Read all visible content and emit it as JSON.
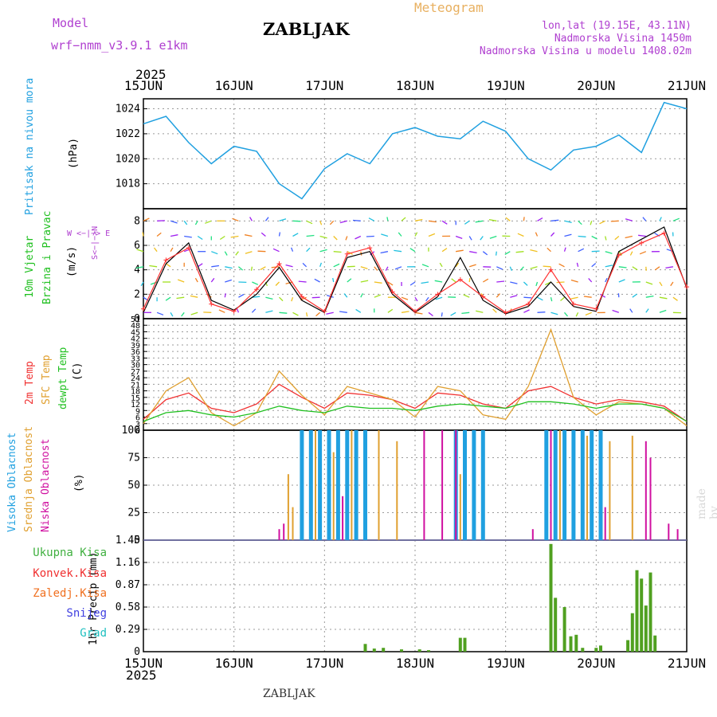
{
  "header": {
    "model_label": "Model",
    "model_value": "wrf−nmm_v3.9.1  e1km",
    "station": "ZABLJAK",
    "title": "Meteogram",
    "lonlat": "lon,lat (19.15E, 43.11N)",
    "elevation": "Nadmorska Visina 1450m",
    "model_elevation": "Nadmorska Visina u modelu 1408.02m",
    "year_top": "2025",
    "year_bottom": "2025",
    "footer_station": "ZABLJAK",
    "watermark": "made by Angel"
  },
  "colors": {
    "pressure": "#20a0e0",
    "wind_speed": "#000000",
    "gust": "#ff3030",
    "t2m": "#f03030",
    "sfc": "#e0a030",
    "dewpt": "#20c020",
    "high_cloud": "#20a0e0",
    "mid_cloud": "#e0a030",
    "low_cloud": "#d010a0",
    "total_precip": "#50a020",
    "convective": "#f03030",
    "frozen": "#f07020",
    "snow": "#4040e0",
    "graupel": "#20c0c0",
    "label_magenta": "#b040d0"
  },
  "chart_data": [
    {
      "type": "line",
      "panel": "pressure",
      "ylabel_main": "Pritisak na nivou mora",
      "ylabel_unit": "(hPa)",
      "x_ticks": [
        "15JUN",
        "16JUN",
        "17JUN",
        "18JUN",
        "19JUN",
        "20JUN",
        "21JUN"
      ],
      "ylim": [
        1016,
        1024.8
      ],
      "y_ticks": [
        1018,
        1020,
        1022,
        1024
      ],
      "x": [
        0,
        0.25,
        0.5,
        0.75,
        1,
        1.25,
        1.5,
        1.75,
        2,
        2.25,
        2.5,
        2.75,
        3,
        3.25,
        3.5,
        3.75,
        4,
        4.25,
        4.5,
        4.75,
        5,
        5.25,
        5.5,
        5.75,
        6
      ],
      "values": [
        1022.8,
        1023.4,
        1021.3,
        1019.6,
        1021.0,
        1020.6,
        1018.0,
        1016.8,
        1019.2,
        1020.4,
        1019.6,
        1022.0,
        1022.5,
        1021.8,
        1021.6,
        1023.0,
        1022.2,
        1020.0,
        1019.1,
        1020.7,
        1021.0,
        1021.9,
        1020.5,
        1024.5,
        1024.0
      ]
    },
    {
      "type": "line",
      "panel": "wind",
      "ylabel_main": "10m Vjetar",
      "ylabel_sub": "Brzina i Pravac",
      "ylabel_unit": "(m/s)",
      "compass": "W <−|−> E",
      "compass_vertical": "S<−|−>N",
      "ylim": [
        0,
        9
      ],
      "y_ticks": [
        0,
        2,
        4,
        6,
        8
      ],
      "x": [
        0,
        0.25,
        0.5,
        0.75,
        1,
        1.25,
        1.5,
        1.75,
        2,
        2.25,
        2.5,
        2.75,
        3,
        3.25,
        3.5,
        3.75,
        4,
        4.25,
        4.5,
        4.75,
        5,
        5.25,
        5.5,
        5.75,
        6
      ],
      "series": [
        {
          "name": "speed",
          "values": [
            0.5,
            4.5,
            6.2,
            1.5,
            0.7,
            2.0,
            4.2,
            1.5,
            0.5,
            5.0,
            5.5,
            2.0,
            0.5,
            1.8,
            5.0,
            1.5,
            0.4,
            1.0,
            3.0,
            1.0,
            0.6,
            5.5,
            6.5,
            7.5,
            2.5
          ]
        },
        {
          "name": "gust",
          "values": [
            0.8,
            4.8,
            5.8,
            1.2,
            0.6,
            2.4,
            4.5,
            1.8,
            0.6,
            5.3,
            5.8,
            2.2,
            0.6,
            2.0,
            3.2,
            1.8,
            0.5,
            1.2,
            4.0,
            1.2,
            0.8,
            5.2,
            6.2,
            7.0,
            2.6
          ]
        }
      ]
    },
    {
      "type": "line",
      "panel": "temperature",
      "ylabel_lines": [
        "2m Temp",
        "SFC Temp",
        "dewpt Temp"
      ],
      "ylabel_unit": "(C)",
      "ylim": [
        0,
        51
      ],
      "y_ticks": [
        0,
        3,
        6,
        9,
        12,
        15,
        18,
        21,
        24,
        27,
        30,
        33,
        36,
        39,
        42,
        45,
        48,
        51
      ],
      "x": [
        0,
        0.25,
        0.5,
        0.75,
        1,
        1.25,
        1.5,
        1.75,
        2,
        2.25,
        2.5,
        2.75,
        3,
        3.25,
        3.5,
        3.75,
        4,
        4.25,
        4.5,
        4.75,
        5,
        5.25,
        5.5,
        5.75,
        6
      ],
      "series": [
        {
          "name": "2m Temp",
          "values": [
            5,
            14,
            17,
            10,
            8,
            12,
            21,
            15,
            10,
            17,
            16,
            14,
            10,
            17,
            16,
            12,
            10,
            18,
            20,
            15,
            12,
            14,
            13,
            11,
            4
          ]
        },
        {
          "name": "SFC Temp",
          "values": [
            3,
            18,
            24,
            8,
            2,
            8,
            27,
            16,
            7,
            20,
            17,
            14,
            6,
            20,
            18,
            7,
            5,
            20,
            46,
            15,
            7,
            13,
            12,
            10,
            2
          ]
        },
        {
          "name": "dewpt Temp",
          "values": [
            4,
            8,
            9,
            7,
            6,
            8,
            11,
            9,
            8,
            11,
            10,
            10,
            9,
            11,
            12,
            11,
            10,
            13,
            13,
            12,
            10,
            12,
            12,
            10,
            4
          ]
        }
      ]
    },
    {
      "type": "bar",
      "panel": "clouds",
      "ylabel_lines": [
        "Visoka Oblacnost",
        "Srednja Oblacnost",
        "Niska Oblacnost"
      ],
      "ylabel_unit": "(%)",
      "ylim": [
        0,
        100
      ],
      "y_ticks": [
        0,
        25,
        50,
        75,
        100
      ],
      "series": [
        {
          "name": "Visoka Oblacnost",
          "x": [
            1.75,
            1.85,
            1.95,
            2.05,
            2.15,
            2.25,
            2.35,
            2.45,
            3.45,
            3.55,
            3.65,
            3.75,
            4.45,
            4.55,
            4.65,
            4.75,
            4.85,
            4.95,
            5.05
          ],
          "values": [
            100,
            100,
            100,
            100,
            100,
            100,
            100,
            100,
            100,
            100,
            100,
            100,
            100,
            100,
            100,
            100,
            100,
            100,
            100
          ]
        },
        {
          "name": "Srednja Oblacnost",
          "x": [
            1.6,
            1.65,
            1.9,
            2.1,
            2.3,
            2.6,
            2.8,
            3.5,
            4.6,
            4.9,
            5.15,
            5.4
          ],
          "values": [
            60,
            30,
            100,
            80,
            100,
            100,
            90,
            60,
            100,
            95,
            90,
            95
          ]
        },
        {
          "name": "Niska Oblacnost",
          "x": [
            1.5,
            1.55,
            2.2,
            3.1,
            3.3,
            3.45,
            4.3,
            4.5,
            5.1,
            5.55,
            5.6,
            5.8,
            5.9
          ],
          "values": [
            10,
            15,
            40,
            100,
            100,
            100,
            10,
            100,
            30,
            90,
            75,
            15,
            10
          ]
        }
      ]
    },
    {
      "type": "bar",
      "panel": "precipitation",
      "ylabel_unit": "1hr Precip (mm)",
      "legend": [
        "Ukupna Kisa",
        "Konvek.Kisa",
        "Zaledj.Kisa",
        "Snijeg",
        "Grad"
      ],
      "ylim": [
        0,
        1.45
      ],
      "y_ticks": [
        0,
        0.29,
        0.58,
        0.87,
        1.16,
        1.45
      ],
      "x": [
        2.45,
        2.55,
        2.65,
        2.85,
        3.05,
        3.15,
        3.5,
        3.55,
        4.5,
        4.55,
        4.65,
        4.72,
        4.78,
        4.85,
        5.0,
        5.05,
        5.35,
        5.4,
        5.45,
        5.5,
        5.55,
        5.6,
        5.65
      ],
      "values": [
        0.1,
        0.04,
        0.05,
        0.03,
        0.03,
        0.02,
        0.18,
        0.18,
        1.4,
        0.7,
        0.58,
        0.2,
        0.22,
        0.05,
        0.05,
        0.08,
        0.15,
        0.5,
        1.06,
        0.95,
        0.6,
        1.03,
        0.21
      ]
    }
  ]
}
